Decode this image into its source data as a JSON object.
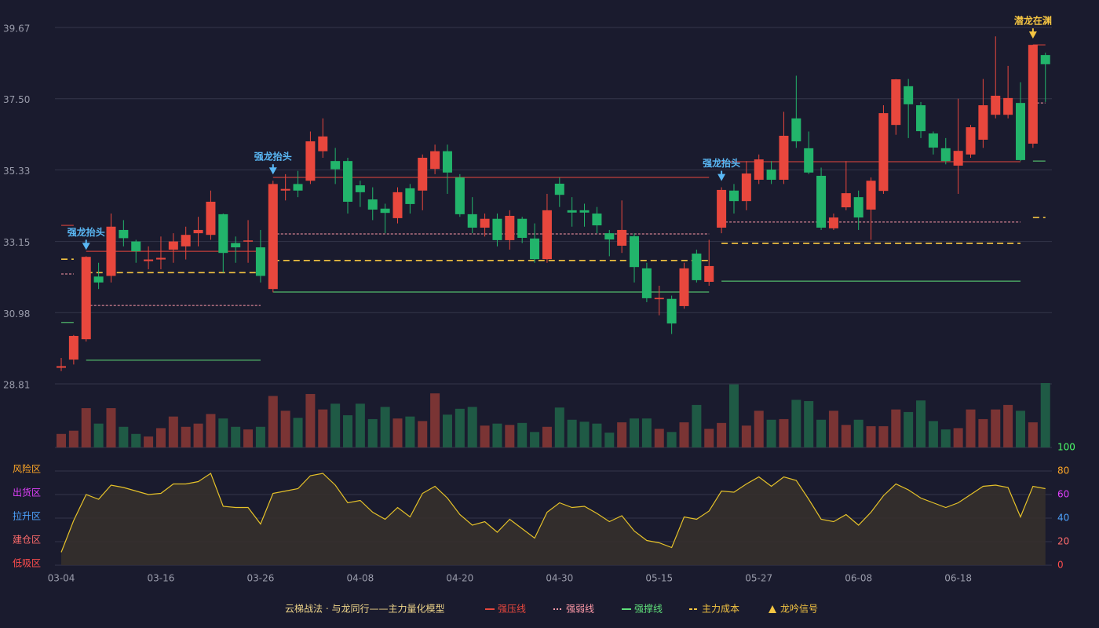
{
  "chart_data": {
    "type": "candlestick",
    "title": "云梯战法 · 与龙同行——主力量化模型",
    "categories": [
      "03-04",
      null,
      null,
      null,
      null,
      null,
      null,
      null,
      "03-16",
      null,
      null,
      null,
      null,
      null,
      null,
      null,
      "03-26",
      null,
      null,
      null,
      null,
      null,
      null,
      null,
      "04-08",
      null,
      null,
      null,
      null,
      null,
      null,
      null,
      "04-20",
      null,
      null,
      null,
      null,
      null,
      null,
      null,
      "04-30",
      null,
      null,
      null,
      null,
      null,
      null,
      null,
      "05-15",
      null,
      null,
      null,
      null,
      null,
      null,
      null,
      "05-27",
      null,
      null,
      null,
      null,
      null,
      null,
      null,
      "06-08",
      null,
      null,
      null,
      null,
      null,
      null,
      null,
      "06-18",
      null,
      null,
      null,
      null,
      null,
      null,
      null
    ],
    "open": [
      29.3,
      29.55,
      30.17,
      32.08,
      32.1,
      33.5,
      33.15,
      32.55,
      32.6,
      32.9,
      33.0,
      33.4,
      33.35,
      33.98,
      33.1,
      33.15,
      32.97,
      31.7,
      34.7,
      34.9,
      35.0,
      35.9,
      35.6,
      35.6,
      34.86,
      34.43,
      34.15,
      33.86,
      34.77,
      34.7,
      35.36,
      35.9,
      35.1,
      33.98,
      33.57,
      33.84,
      33.19,
      33.84,
      33.24,
      32.61,
      34.91,
      34.1,
      34.1,
      34.0,
      33.4,
      33.02,
      33.31,
      32.33,
      31.39,
      31.4,
      31.18,
      32.78,
      31.92,
      33.57,
      34.7,
      34.38,
      35.03,
      35.34,
      35.03,
      36.9,
      35.99,
      35.15,
      33.55,
      34.19,
      34.5,
      34.12,
      34.69,
      36.7,
      37.88,
      37.3,
      36.44,
      35.99,
      35.46,
      35.8,
      36.25,
      37.01,
      37.01,
      37.37,
      36.13,
      38.83
    ],
    "high": [
      29.6,
      30.3,
      32.7,
      32.5,
      34.0,
      33.8,
      33.2,
      33.0,
      33.3,
      33.4,
      33.6,
      33.9,
      34.7,
      34.0,
      33.3,
      33.8,
      33.5,
      35.0,
      35.2,
      35.3,
      36.5,
      36.9,
      36.0,
      35.7,
      35.0,
      34.8,
      34.3,
      34.8,
      34.9,
      35.8,
      36.1,
      36.1,
      35.2,
      34.5,
      34.0,
      34.0,
      34.1,
      33.9,
      33.7,
      34.6,
      35.1,
      34.5,
      34.3,
      34.2,
      33.5,
      34.4,
      33.4,
      32.5,
      31.8,
      31.5,
      32.5,
      32.9,
      33.2,
      34.8,
      34.9,
      35.6,
      35.8,
      35.6,
      37.1,
      38.2,
      36.5,
      35.4,
      34.0,
      35.6,
      34.7,
      35.1,
      37.3,
      38.1,
      38.1,
      37.4,
      36.5,
      36.3,
      37.5,
      36.7,
      38.1,
      39.4,
      38.5,
      38.0,
      39.14,
      38.9
    ],
    "low": [
      29.2,
      29.4,
      30.1,
      31.7,
      31.9,
      33.0,
      32.5,
      32.3,
      32.3,
      32.5,
      32.6,
      33.0,
      33.2,
      32.2,
      32.5,
      32.5,
      31.9,
      31.6,
      34.4,
      34.5,
      34.9,
      35.7,
      34.9,
      34.0,
      34.2,
      33.8,
      33.4,
      33.7,
      34.0,
      34.1,
      35.2,
      34.6,
      33.9,
      33.4,
      33.3,
      33.0,
      32.9,
      33.1,
      32.5,
      32.5,
      34.2,
      33.6,
      33.6,
      33.4,
      32.7,
      32.8,
      31.9,
      31.3,
      30.9,
      30.33,
      31.1,
      31.9,
      31.8,
      33.4,
      34.0,
      34.1,
      34.9,
      34.9,
      34.9,
      36.0,
      35.2,
      33.5,
      33.5,
      34.1,
      33.5,
      33.2,
      34.6,
      36.4,
      36.3,
      36.3,
      35.8,
      35.5,
      34.6,
      35.7,
      36.0,
      36.9,
      36.9,
      35.6,
      36.0,
      37.4
    ],
    "close": [
      29.35,
      30.27,
      32.68,
      31.9,
      33.6,
      33.25,
      32.85,
      32.6,
      32.65,
      33.15,
      33.35,
      33.5,
      34.36,
      32.8,
      32.97,
      33.18,
      32.1,
      34.9,
      34.75,
      34.7,
      36.2,
      36.35,
      35.35,
      34.36,
      34.65,
      34.12,
      34.02,
      34.65,
      34.29,
      35.7,
      35.9,
      35.25,
      33.98,
      33.57,
      33.84,
      33.19,
      33.93,
      33.26,
      32.61,
      34.1,
      34.57,
      34.03,
      34.03,
      33.64,
      33.21,
      33.5,
      32.37,
      31.42,
      31.43,
      30.65,
      32.33,
      31.97,
      32.4,
      34.72,
      34.38,
      35.22,
      35.65,
      35.03,
      36.37,
      36.2,
      35.25,
      33.57,
      33.88,
      34.62,
      33.88,
      35.0,
      37.06,
      38.09,
      37.33,
      36.51,
      36.01,
      35.6,
      35.91,
      36.63,
      37.3,
      37.59,
      37.52,
      35.63,
      39.14,
      38.55
    ],
    "up_color": "#e8473d",
    "down_color": "#22b46b",
    "ylim": [
      28.81,
      39.67
    ],
    "yticks": [
      28.81,
      30.98,
      33.15,
      35.33,
      {
        "value": 37.5,
        "label": "37.50"
      },
      39.67
    ],
    "grid": true,
    "volume": {
      "values": [
        21,
        26,
        61,
        37,
        61,
        32,
        21,
        17,
        30,
        48,
        32,
        37,
        52,
        45,
        32,
        28,
        32,
        80,
        57,
        46,
        83,
        59,
        68,
        50,
        68,
        44,
        63,
        45,
        48,
        41,
        84,
        51,
        60,
        63,
        34,
        37,
        35,
        38,
        24,
        32,
        62,
        43,
        40,
        37,
        23,
        39,
        45,
        45,
        29,
        24,
        39,
        66,
        29,
        38,
        98,
        34,
        57,
        43,
        44,
        74,
        72,
        43,
        57,
        35,
        43,
        33,
        33,
        59,
        55,
        73,
        41,
        28,
        30,
        59,
        44,
        59,
        66,
        57,
        39,
        100
      ],
      "ylim": [
        0,
        100
      ],
      "up_color": "#7a3434",
      "down_color": "#1f5a45"
    },
    "levels": [
      {
        "name": "强压线",
        "color": "#e8473d",
        "style": "solid",
        "values": [
          33.64,
          33.64,
          32.85,
          32.85,
          32.85,
          32.85,
          32.85,
          32.85,
          32.85,
          32.85,
          32.85,
          32.85,
          32.85,
          32.85,
          32.85,
          32.85,
          32.85,
          35.1,
          35.1,
          35.1,
          35.1,
          35.1,
          35.1,
          35.1,
          35.1,
          35.1,
          35.1,
          35.1,
          35.1,
          35.1,
          35.1,
          35.1,
          35.1,
          35.1,
          35.1,
          35.1,
          35.1,
          35.1,
          35.1,
          35.1,
          35.1,
          35.1,
          35.1,
          35.1,
          35.1,
          35.1,
          35.1,
          35.1,
          35.1,
          35.1,
          35.1,
          35.1,
          35.1,
          35.58,
          35.58,
          35.58,
          35.58,
          35.58,
          35.58,
          35.58,
          35.58,
          35.58,
          35.58,
          35.58,
          35.58,
          35.58,
          35.58,
          35.58,
          35.58,
          35.58,
          35.58,
          35.58,
          35.58,
          35.58,
          35.58,
          35.58,
          35.58,
          35.58,
          39.14,
          39.14
        ]
      },
      {
        "name": "强弱线",
        "color": "#ff9aa8",
        "style": "dotted",
        "values": [
          32.16,
          32.16,
          31.2,
          31.2,
          31.2,
          31.2,
          31.2,
          31.2,
          31.2,
          31.2,
          31.2,
          31.2,
          31.2,
          31.2,
          31.2,
          31.2,
          31.2,
          33.38,
          33.38,
          33.38,
          33.38,
          33.38,
          33.38,
          33.38,
          33.38,
          33.38,
          33.38,
          33.38,
          33.38,
          33.38,
          33.38,
          33.38,
          33.38,
          33.38,
          33.38,
          33.38,
          33.38,
          33.38,
          33.38,
          33.38,
          33.38,
          33.38,
          33.38,
          33.38,
          33.38,
          33.38,
          33.38,
          33.38,
          33.38,
          33.38,
          33.38,
          33.38,
          33.38,
          33.74,
          33.74,
          33.74,
          33.74,
          33.74,
          33.74,
          33.74,
          33.74,
          33.74,
          33.74,
          33.74,
          33.74,
          33.74,
          33.74,
          33.74,
          33.74,
          33.74,
          33.74,
          33.74,
          33.74,
          33.74,
          33.74,
          33.74,
          33.74,
          33.74,
          37.37,
          37.37
        ]
      },
      {
        "name": "强撑线",
        "color": "#5fe07a",
        "style": "solid",
        "values": [
          30.68,
          30.68,
          29.53,
          29.53,
          29.53,
          29.53,
          29.53,
          29.53,
          29.53,
          29.53,
          29.53,
          29.53,
          29.53,
          29.53,
          29.53,
          29.53,
          29.53,
          31.61,
          31.61,
          31.61,
          31.61,
          31.61,
          31.61,
          31.61,
          31.61,
          31.61,
          31.61,
          31.61,
          31.61,
          31.61,
          31.61,
          31.61,
          31.61,
          31.61,
          31.61,
          31.61,
          31.61,
          31.61,
          31.61,
          31.61,
          31.61,
          31.61,
          31.61,
          31.61,
          31.61,
          31.61,
          31.61,
          31.61,
          31.61,
          31.61,
          31.61,
          31.61,
          31.61,
          31.94,
          31.94,
          31.94,
          31.94,
          31.94,
          31.94,
          31.94,
          31.94,
          31.94,
          31.94,
          31.94,
          31.94,
          31.94,
          31.94,
          31.94,
          31.94,
          31.94,
          31.94,
          31.94,
          31.94,
          31.94,
          31.94,
          31.94,
          31.94,
          31.94,
          35.6,
          35.6
        ]
      },
      {
        "name": "主力成本",
        "color": "#f5c542",
        "style": "dashed",
        "values": [
          32.61,
          32.61,
          32.2,
          32.2,
          32.2,
          32.2,
          32.2,
          32.2,
          32.2,
          32.2,
          32.2,
          32.2,
          32.2,
          32.2,
          32.2,
          32.2,
          32.2,
          32.57,
          32.57,
          32.57,
          32.57,
          32.57,
          32.57,
          32.57,
          32.57,
          32.57,
          32.57,
          32.57,
          32.57,
          32.57,
          32.57,
          32.57,
          32.57,
          32.57,
          32.57,
          32.57,
          32.57,
          32.57,
          32.57,
          32.57,
          32.57,
          32.57,
          32.57,
          32.57,
          32.57,
          32.57,
          32.57,
          32.57,
          32.57,
          32.57,
          32.57,
          32.57,
          32.57,
          33.09,
          33.09,
          33.09,
          33.09,
          33.09,
          33.09,
          33.09,
          33.09,
          33.09,
          33.09,
          33.09,
          33.09,
          33.09,
          33.09,
          33.09,
          33.09,
          33.09,
          33.09,
          33.09,
          33.09,
          33.09,
          33.09,
          33.09,
          33.09,
          33.09,
          33.88,
          33.88
        ]
      }
    ],
    "signals": {
      "name": "龙吟信号",
      "color": "#f5c542",
      "points": [
        {
          "at": 2,
          "label": "强龙抬头",
          "color": "#5ab8f5"
        },
        {
          "at": 17,
          "label": "强龙抬头",
          "color": "#5ab8f5"
        },
        {
          "at": 53,
          "label": "强龙抬头",
          "color": "#5ab8f5"
        },
        {
          "at": 78,
          "label": "潜龙在渊",
          "color": "#f5c542"
        }
      ]
    },
    "oscillator": {
      "values": [
        11,
        38,
        60,
        56,
        68,
        66,
        63,
        60,
        61,
        69,
        69,
        71,
        78,
        50,
        49,
        49,
        35,
        61,
        63,
        65,
        76,
        78,
        68,
        53,
        55,
        45,
        39,
        49,
        41,
        61,
        67,
        57,
        43,
        34,
        37,
        28,
        39,
        31,
        23,
        45,
        53,
        49,
        50,
        44,
        37,
        42,
        29,
        21,
        19,
        15,
        41,
        39,
        46,
        63,
        62,
        69,
        75,
        67,
        75,
        72,
        56,
        39,
        37,
        43,
        34,
        45,
        59,
        69,
        64,
        57,
        53,
        49,
        53,
        60,
        67,
        68,
        66,
        41,
        67,
        65
      ],
      "ylim": [
        0,
        100
      ],
      "yticks": [
        0,
        20,
        40,
        60,
        80,
        100
      ],
      "tick_colors": [
        "#ff4d4d",
        "#ff6b6b",
        "#4da3ff",
        "#e040fb",
        "#ffa726",
        "#4cff6a"
      ],
      "line_color": "#e6c229",
      "area_color": "#35302c",
      "zones": [
        {
          "label": "风险区",
          "value": 80,
          "color": "#ffa726"
        },
        {
          "label": "出货区",
          "value": 60,
          "color": "#e040fb"
        },
        {
          "label": "拉升区",
          "value": 40,
          "color": "#4da3ff"
        },
        {
          "label": "建仓区",
          "value": 20,
          "color": "#ff6b6b"
        },
        {
          "label": "低吸区",
          "value": 0,
          "color": "#ff4d4d"
        }
      ]
    }
  }
}
